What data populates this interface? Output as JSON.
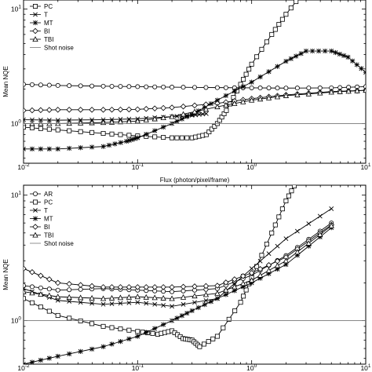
{
  "chart_data": [
    {
      "type": "line",
      "xlabel": "Flux (photon/pixel/frame)",
      "ylabel": "Mean NQE",
      "xscale": "log",
      "yscale": "log",
      "xlim": [
        0.01,
        10
      ],
      "ylim": [
        0.45,
        12
      ],
      "grid": false,
      "legend_position": "top-left",
      "x_tick_labels": [
        "10^-2",
        "10^-1",
        "10^0",
        "10^1"
      ],
      "y_tick_labels": [
        "10^0",
        "10^1"
      ],
      "legend": [
        "PC",
        "T",
        "MT",
        "BI",
        "TBI",
        "Shot noise"
      ],
      "series": [
        {
          "name": "AR",
          "marker": "circle",
          "in_legend": false,
          "x": [
            0.01,
            0.02,
            0.05,
            0.1,
            0.2,
            0.5,
            1,
            2,
            5,
            10
          ],
          "y": [
            2.2,
            2.15,
            2.12,
            2.1,
            2.08,
            2.06,
            2.05,
            2.04,
            2.05,
            2.1
          ]
        },
        {
          "name": "PC",
          "marker": "square",
          "x": [
            0.01,
            0.02,
            0.05,
            0.1,
            0.2,
            0.3,
            0.4,
            0.5,
            0.6,
            0.8,
            1,
            1.5,
            2,
            3
          ],
          "y": [
            0.93,
            0.88,
            0.82,
            0.78,
            0.75,
            0.75,
            0.8,
            1.0,
            1.3,
            2.2,
            3.3,
            6.0,
            9.0,
            15
          ]
        },
        {
          "name": "T",
          "marker": "x",
          "x": [
            0.01,
            0.02,
            0.05,
            0.1,
            0.2,
            0.3,
            0.4
          ],
          "y": [
            1.08,
            1.07,
            1.08,
            1.1,
            1.15,
            1.18,
            1.22
          ]
        },
        {
          "name": "MT",
          "marker": "star",
          "x": [
            0.01,
            0.02,
            0.05,
            0.08,
            0.1,
            0.2,
            0.3,
            0.5,
            1,
            2,
            3,
            5,
            7,
            10
          ],
          "y": [
            0.6,
            0.6,
            0.63,
            0.7,
            0.75,
            1.0,
            1.2,
            1.6,
            2.3,
            3.5,
            4.3,
            4.3,
            3.8,
            2.8
          ]
        },
        {
          "name": "BI",
          "marker": "diamond",
          "x": [
            0.01,
            0.02,
            0.05,
            0.1,
            0.2,
            0.5,
            1,
            2,
            5,
            10
          ],
          "y": [
            1.3,
            1.32,
            1.32,
            1.33,
            1.38,
            1.5,
            1.65,
            1.78,
            1.9,
            1.95
          ]
        },
        {
          "name": "TBI",
          "marker": "triangle",
          "x": [
            0.01,
            0.02,
            0.05,
            0.1,
            0.2,
            0.5,
            1,
            2,
            5,
            10
          ],
          "y": [
            1.0,
            1.0,
            1.02,
            1.05,
            1.15,
            1.4,
            1.6,
            1.75,
            1.88,
            1.95
          ]
        },
        {
          "name": "Shot noise",
          "marker": "none",
          "x": [
            0.01,
            10
          ],
          "y": [
            1,
            1
          ]
        }
      ]
    },
    {
      "type": "line",
      "xlabel": "",
      "ylabel": "Mean NQE",
      "xscale": "log",
      "yscale": "log",
      "xlim": [
        0.01,
        10
      ],
      "ylim": [
        0.45,
        12
      ],
      "grid": false,
      "legend_position": "top-left",
      "x_tick_labels": [
        "10^-2",
        "10^-1",
        "10^0",
        "10^1"
      ],
      "y_tick_labels": [
        "10^0",
        "10^1"
      ],
      "legend": [
        "AR",
        "PC",
        "T",
        "MT",
        "BI",
        "TBI",
        "Shot noise"
      ],
      "series": [
        {
          "name": "AR",
          "marker": "circle",
          "x": [
            0.01,
            0.02,
            0.05,
            0.1,
            0.2,
            0.5,
            1,
            2,
            5
          ],
          "y": [
            1.9,
            1.75,
            1.8,
            1.75,
            1.7,
            1.8,
            2.3,
            3.3,
            6.0
          ]
        },
        {
          "name": "PC",
          "marker": "square",
          "x": [
            0.01,
            0.02,
            0.05,
            0.1,
            0.15,
            0.2,
            0.25,
            0.3,
            0.35,
            0.5,
            0.8,
            1,
            1.5,
            2,
            2.5
          ],
          "y": [
            1.5,
            1.1,
            0.9,
            0.82,
            0.78,
            0.83,
            0.72,
            0.7,
            0.62,
            0.75,
            1.4,
            2.2,
            5.0,
            9.0,
            13
          ]
        },
        {
          "name": "T",
          "marker": "x",
          "x": [
            0.01,
            0.02,
            0.05,
            0.1,
            0.2,
            0.5,
            1,
            2,
            5
          ],
          "y": [
            1.8,
            1.45,
            1.35,
            1.4,
            1.3,
            1.5,
            2.6,
            4.5,
            7.8
          ]
        },
        {
          "name": "MT",
          "marker": "star",
          "x": [
            0.01,
            0.02,
            0.05,
            0.1,
            0.2,
            0.3,
            0.5,
            1,
            2,
            5
          ],
          "y": [
            0.45,
            0.52,
            0.62,
            0.75,
            1.0,
            1.2,
            1.5,
            2.0,
            2.8,
            5.5
          ]
        },
        {
          "name": "BI",
          "marker": "diamond",
          "x": [
            0.01,
            0.02,
            0.05,
            0.1,
            0.2,
            0.5,
            1,
            2,
            5
          ],
          "y": [
            2.6,
            2.0,
            1.85,
            1.85,
            1.85,
            1.9,
            2.4,
            3.2,
            5.8
          ]
        },
        {
          "name": "TBI",
          "marker": "triangle",
          "x": [
            0.01,
            0.02,
            0.05,
            0.1,
            0.2,
            0.5,
            1,
            2,
            5
          ],
          "y": [
            1.7,
            1.55,
            1.5,
            1.55,
            1.5,
            1.65,
            2.1,
            3.0,
            5.7
          ]
        },
        {
          "name": "Shot noise",
          "marker": "none",
          "x": [
            0.01,
            10
          ],
          "y": [
            1,
            1
          ]
        }
      ]
    }
  ]
}
